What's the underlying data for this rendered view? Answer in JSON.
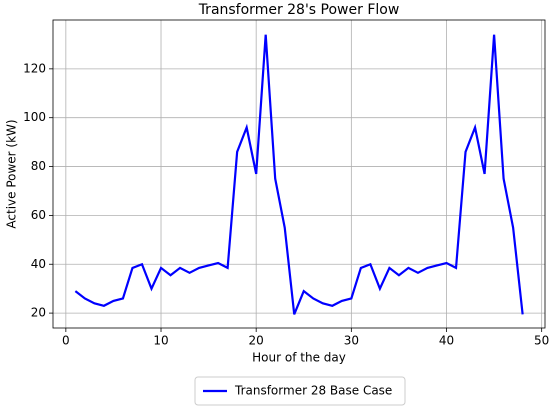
{
  "chart_data": {
    "type": "line",
    "title": "Transformer 28's Power Flow",
    "x_label": "Hour of the day",
    "y_label": "Active Power (kW)",
    "x": [
      1,
      2,
      3,
      4,
      5,
      6,
      7,
      8,
      9,
      10,
      11,
      12,
      13,
      14,
      15,
      16,
      17,
      18,
      19,
      20,
      21,
      22,
      23,
      24,
      25,
      26,
      27,
      28,
      29,
      30,
      31,
      32,
      33,
      34,
      35,
      36,
      37,
      38,
      39,
      40,
      41,
      42,
      43,
      44,
      45,
      46,
      47,
      48
    ],
    "series": [
      {
        "name": "Transformer 28 Base Case",
        "color": "#0000ff",
        "values": [
          29,
          26,
          24,
          23,
          25,
          26,
          38.5,
          40,
          30,
          38.5,
          35.5,
          38.5,
          36.5,
          38.5,
          39.5,
          40.5,
          38.5,
          86,
          96,
          77,
          134,
          75,
          55,
          19.5,
          29,
          26,
          24,
          23,
          25,
          26,
          38.5,
          40,
          30,
          38.5,
          35.5,
          38.5,
          36.5,
          38.5,
          39.5,
          40.5,
          38.5,
          86,
          96,
          77,
          134,
          75,
          55,
          19.5
        ]
      }
    ],
    "xlim": [
      -1.35,
      50.35
    ],
    "ylim": [
      13.9,
      140
    ],
    "xticks": [
      0,
      10,
      20,
      30,
      40,
      50
    ],
    "yticks": [
      20,
      40,
      60,
      80,
      100,
      120
    ],
    "grid": true,
    "legend": "below"
  }
}
